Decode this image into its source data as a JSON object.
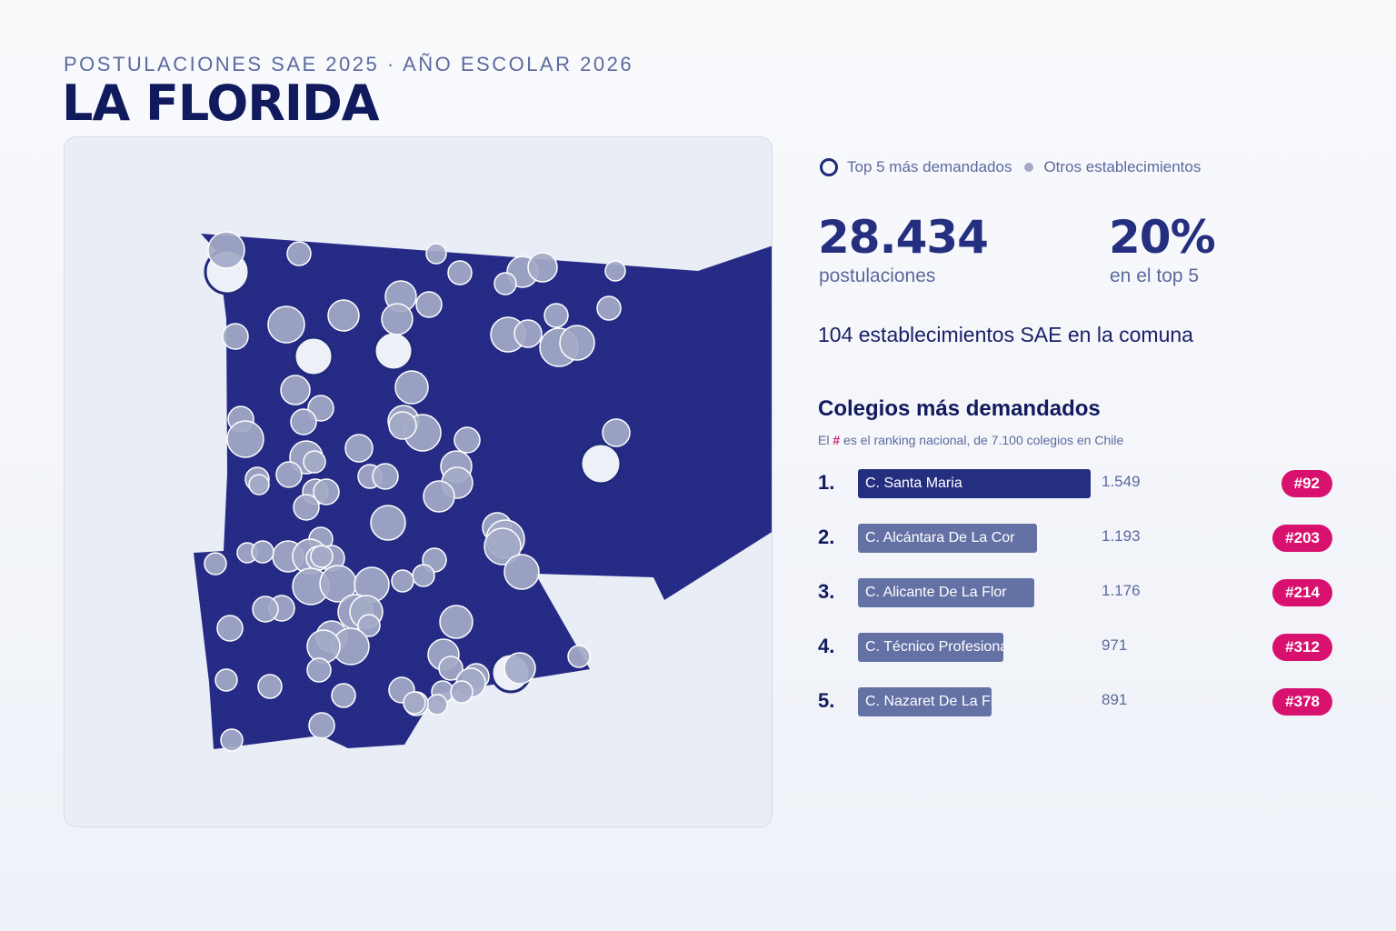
{
  "header": {
    "subtitle": "POSTULACIONES SAE 2025 · AÑO ESCOLAR 2026",
    "title": "LA FLORIDA"
  },
  "legend": {
    "top5": "Top 5 más demandados",
    "others": "Otros establecimientos"
  },
  "stats": {
    "applications_value": "28.434",
    "applications_label": "postulaciones",
    "top5_share_value": "20%",
    "top5_share_label": "en el top 5",
    "schools_count_text": "104 establecimientos SAE en la comuna"
  },
  "ranking": {
    "title": "Colegios más demandados",
    "note_prefix": "El",
    "note_hash": "#",
    "note_suffix": "es el ranking nacional, de 7.100 colegios en Chile",
    "rows": [
      {
        "pos": "1.",
        "name": "C. Santa Maria",
        "value": 1549,
        "value_label": "1.549",
        "rank": "#92",
        "highlight": true
      },
      {
        "pos": "2.",
        "name": "C. Alcántara De La Cor",
        "value": 1193,
        "value_label": "1.193",
        "rank": "#203",
        "highlight": false
      },
      {
        "pos": "3.",
        "name": "C. Alicante De La Flor",
        "value": 1176,
        "value_label": "1.176",
        "rank": "#214",
        "highlight": false
      },
      {
        "pos": "4.",
        "name": "C. Técnico Profesional",
        "value": 971,
        "value_label": "971",
        "rank": "#312",
        "highlight": false
      },
      {
        "pos": "5.",
        "name": "C. Nazaret De La Flori",
        "value": 891,
        "value_label": "891",
        "rank": "#378",
        "highlight": false
      }
    ]
  },
  "colors": {
    "region_fill": "#252a85",
    "bubble_fill": "#a3aac7",
    "top5_fill": "#eef0f8",
    "top5_ring": "#1f2a7a",
    "badge": "#d8116e",
    "bar_top": "#252f80",
    "bar_other": "#6471a5"
  }
}
